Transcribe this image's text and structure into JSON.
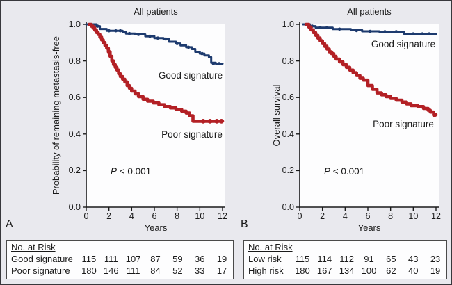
{
  "figure": {
    "kind": "Kaplan-Meier survival figure, two panels",
    "colors": {
      "background": "#e9e9ee",
      "plot_background": "#fdfdfe",
      "axis": "#1a1a1a",
      "frame": "#38383c",
      "good_signature_blue": "#1d3a6e",
      "poor_signature_red": "#b32025"
    }
  },
  "chart_data": [
    {
      "type": "line",
      "panel_label": "A",
      "title": "All patients",
      "xlabel": "Years",
      "ylabel": "Probability of remaining metastasis-free",
      "xlim": [
        0,
        12
      ],
      "ylim": [
        0.0,
        1.0
      ],
      "xticks": [
        0,
        2,
        4,
        6,
        8,
        10,
        12
      ],
      "yticks": [
        "1.0",
        "0.8",
        "0.6",
        "0.4",
        "0.2",
        "0.0"
      ],
      "p_italic": "P",
      "p_rest": " < 0.001",
      "grid": false,
      "series": [
        {
          "name": "Good signature",
          "color": "#1d3a6e",
          "stroke_width": 3,
          "points": [
            [
              0,
              1.0
            ],
            [
              0.9,
              0.99
            ],
            [
              1.2,
              0.975
            ],
            [
              1.8,
              0.965
            ],
            [
              3.2,
              0.96
            ],
            [
              3.5,
              0.95
            ],
            [
              4.3,
              0.945
            ],
            [
              5.2,
              0.935
            ],
            [
              6.0,
              0.925
            ],
            [
              6.8,
              0.92
            ],
            [
              7.3,
              0.905
            ],
            [
              7.9,
              0.895
            ],
            [
              8.3,
              0.885
            ],
            [
              8.8,
              0.875
            ],
            [
              9.3,
              0.865
            ],
            [
              9.6,
              0.85
            ],
            [
              10.0,
              0.84
            ],
            [
              10.4,
              0.83
            ],
            [
              10.8,
              0.82
            ],
            [
              11.0,
              0.79
            ],
            [
              11.4,
              0.785
            ]
          ],
          "censor_marks": [
            [
              1.0,
              0.99
            ],
            [
              2.0,
              0.965
            ],
            [
              2.6,
              0.965
            ],
            [
              3.0,
              0.965
            ],
            [
              3.8,
              0.95
            ],
            [
              4.6,
              0.945
            ],
            [
              5.6,
              0.935
            ],
            [
              6.3,
              0.925
            ],
            [
              7.0,
              0.92
            ],
            [
              8.0,
              0.895
            ],
            [
              9.0,
              0.875
            ],
            [
              10.2,
              0.84
            ],
            [
              11.2,
              0.785
            ],
            [
              11.7,
              0.785
            ]
          ]
        },
        {
          "name": "Poor signature",
          "color": "#b32025",
          "stroke_width": 4.6,
          "points": [
            [
              0.25,
              1.0
            ],
            [
              0.45,
              0.99
            ],
            [
              0.6,
              0.98
            ],
            [
              0.75,
              0.968
            ],
            [
              0.9,
              0.955
            ],
            [
              1.05,
              0.945
            ],
            [
              1.2,
              0.93
            ],
            [
              1.35,
              0.915
            ],
            [
              1.5,
              0.9
            ],
            [
              1.65,
              0.885
            ],
            [
              1.8,
              0.87
            ],
            [
              1.95,
              0.85
            ],
            [
              2.1,
              0.825
            ],
            [
              2.25,
              0.8
            ],
            [
              2.4,
              0.78
            ],
            [
              2.55,
              0.765
            ],
            [
              2.7,
              0.75
            ],
            [
              2.85,
              0.73
            ],
            [
              3.0,
              0.715
            ],
            [
              3.2,
              0.7
            ],
            [
              3.4,
              0.685
            ],
            [
              3.6,
              0.665
            ],
            [
              3.8,
              0.65
            ],
            [
              4.0,
              0.635
            ],
            [
              4.3,
              0.62
            ],
            [
              4.6,
              0.605
            ],
            [
              5.0,
              0.59
            ],
            [
              5.4,
              0.58
            ],
            [
              5.9,
              0.57
            ],
            [
              6.4,
              0.56
            ],
            [
              6.9,
              0.55
            ],
            [
              7.4,
              0.543
            ],
            [
              7.9,
              0.535
            ],
            [
              8.4,
              0.525
            ],
            [
              8.8,
              0.515
            ],
            [
              9.1,
              0.5
            ],
            [
              9.4,
              0.47
            ]
          ],
          "censor_marks": [
            [
              10.3,
              0.47
            ],
            [
              10.9,
              0.47
            ],
            [
              11.5,
              0.47
            ],
            [
              11.9,
              0.47
            ]
          ]
        }
      ],
      "at_risk": {
        "header": "No. at Risk",
        "rows": [
          {
            "label": "Good signature",
            "counts": [
              115,
              111,
              107,
              87,
              59,
              36,
              19
            ]
          },
          {
            "label": "Poor signature",
            "counts": [
              180,
              146,
              111,
              84,
              52,
              33,
              17
            ]
          }
        ]
      }
    },
    {
      "type": "line",
      "panel_label": "B",
      "title": "All patients",
      "xlabel": "Years",
      "ylabel": "Overall survival",
      "xlim": [
        0,
        12
      ],
      "ylim": [
        0.0,
        1.0
      ],
      "xticks": [
        0,
        2,
        4,
        6,
        8,
        10,
        12
      ],
      "yticks": [
        "1.0",
        "0.8",
        "0.6",
        "0.4",
        "0.2",
        "0.0"
      ],
      "p_italic": "P",
      "p_rest": " < 0.001",
      "grid": false,
      "series": [
        {
          "name": "Good signature",
          "color": "#1d3a6e",
          "stroke_width": 3,
          "points": [
            [
              0.3,
              1.0
            ],
            [
              0.9,
              0.99
            ],
            [
              1.4,
              0.982
            ],
            [
              2.9,
              0.974
            ],
            [
              4.5,
              0.968
            ],
            [
              5.5,
              0.962
            ],
            [
              7.0,
              0.96
            ],
            [
              9.2,
              0.948
            ]
          ],
          "censor_marks": [
            [
              1.1,
              0.99
            ],
            [
              1.8,
              0.982
            ],
            [
              2.4,
              0.982
            ],
            [
              3.5,
              0.974
            ],
            [
              5.0,
              0.966
            ],
            [
              6.2,
              0.962
            ],
            [
              7.5,
              0.96
            ],
            [
              8.5,
              0.96
            ],
            [
              10.0,
              0.948
            ],
            [
              10.8,
              0.948
            ],
            [
              11.4,
              0.948
            ]
          ]
        },
        {
          "name": "Poor signature",
          "color": "#b32025",
          "stroke_width": 4.6,
          "points": [
            [
              0.55,
              1.0
            ],
            [
              0.8,
              0.985
            ],
            [
              1.0,
              0.97
            ],
            [
              1.2,
              0.955
            ],
            [
              1.4,
              0.94
            ],
            [
              1.6,
              0.925
            ],
            [
              1.8,
              0.91
            ],
            [
              2.0,
              0.895
            ],
            [
              2.2,
              0.88
            ],
            [
              2.4,
              0.865
            ],
            [
              2.6,
              0.85
            ],
            [
              2.8,
              0.84
            ],
            [
              3.0,
              0.825
            ],
            [
              3.2,
              0.81
            ],
            [
              3.5,
              0.795
            ],
            [
              3.8,
              0.78
            ],
            [
              4.1,
              0.765
            ],
            [
              4.4,
              0.75
            ],
            [
              4.7,
              0.735
            ],
            [
              5.0,
              0.72
            ],
            [
              5.3,
              0.705
            ],
            [
              5.6,
              0.695
            ],
            [
              6.0,
              0.665
            ],
            [
              6.4,
              0.645
            ],
            [
              6.8,
              0.625
            ],
            [
              7.2,
              0.615
            ],
            [
              7.6,
              0.605
            ],
            [
              8.0,
              0.595
            ],
            [
              8.5,
              0.585
            ],
            [
              9.0,
              0.575
            ],
            [
              9.4,
              0.565
            ],
            [
              9.8,
              0.555
            ],
            [
              10.4,
              0.55
            ],
            [
              10.9,
              0.54
            ],
            [
              11.3,
              0.53
            ],
            [
              11.5,
              0.52
            ],
            [
              11.8,
              0.505
            ]
          ],
          "censor_marks": [
            [
              11.85,
              0.505
            ]
          ]
        }
      ],
      "at_risk": {
        "header": "No. at Risk",
        "rows": [
          {
            "label": "Low risk",
            "counts": [
              115,
              114,
              112,
              91,
              65,
              43,
              23
            ]
          },
          {
            "label": "High risk",
            "counts": [
              180,
              167,
              134,
              100,
              62,
              40,
              19
            ]
          }
        ]
      }
    }
  ]
}
